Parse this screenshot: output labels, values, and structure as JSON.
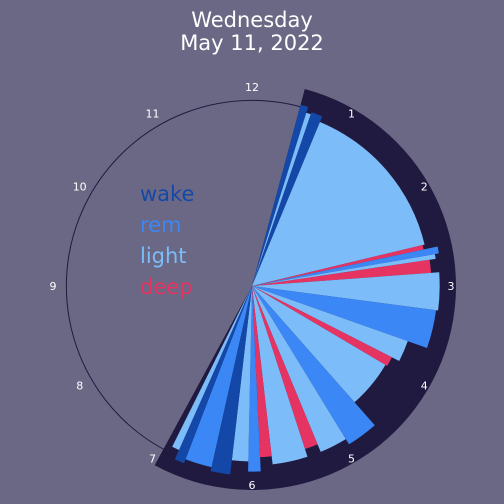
{
  "chart_data": {
    "type": "polar-bar",
    "title_line1": "Wednesday",
    "title_line2": "May 11, 2022",
    "hour_labels": [
      "12",
      "1",
      "2",
      "3",
      "4",
      "5",
      "6",
      "7",
      "8",
      "9",
      "10",
      "11"
    ],
    "legend": [
      {
        "label": "wake",
        "color": "#1448a8"
      },
      {
        "label": "rem",
        "color": "#3b87f5"
      },
      {
        "label": "light",
        "color": "#7cbcf9"
      },
      {
        "label": "deep",
        "color": "#e63462"
      }
    ],
    "colors": {
      "background": "#6b6885",
      "night_band": "#211a40",
      "clock_outline": "#211a40",
      "wake": "#1448a8",
      "rem": "#3b87f5",
      "light": "#7cbcf9",
      "deep": "#e63462"
    },
    "sleep_window": {
      "start_hour": 0.5,
      "end_hour": 6.95,
      "radius": 1.0
    },
    "clock_radius": 0.91,
    "segments": [
      {
        "start": 0.5,
        "end": 0.58,
        "stage": "wake",
        "radius": 0.92
      },
      {
        "start": 0.58,
        "end": 0.63,
        "stage": "light",
        "radius": 0.89
      },
      {
        "start": 0.63,
        "end": 0.75,
        "stage": "wake",
        "radius": 0.9
      },
      {
        "start": 0.75,
        "end": 2.55,
        "stage": "light",
        "radius": 0.87
      },
      {
        "start": 2.55,
        "end": 2.6,
        "stage": "deep",
        "radius": 0.86
      },
      {
        "start": 2.6,
        "end": 2.67,
        "stage": "rem",
        "radius": 0.93
      },
      {
        "start": 2.67,
        "end": 2.72,
        "stage": "light",
        "radius": 0.91
      },
      {
        "start": 2.72,
        "end": 2.86,
        "stage": "deep",
        "radius": 0.88
      },
      {
        "start": 2.86,
        "end": 3.25,
        "stage": "light",
        "radius": 0.92
      },
      {
        "start": 3.25,
        "end": 3.65,
        "stage": "rem",
        "radius": 0.91
      },
      {
        "start": 3.65,
        "end": 3.9,
        "stage": "light",
        "radius": 0.81
      },
      {
        "start": 3.9,
        "end": 4.02,
        "stage": "deep",
        "radius": 0.77
      },
      {
        "start": 4.02,
        "end": 4.62,
        "stage": "light",
        "radius": 0.76
      },
      {
        "start": 4.62,
        "end": 4.95,
        "stage": "rem",
        "radius": 0.91
      },
      {
        "start": 4.95,
        "end": 5.25,
        "stage": "light",
        "radius": 0.88
      },
      {
        "start": 5.25,
        "end": 5.4,
        "stage": "deep",
        "radius": 0.84
      },
      {
        "start": 5.4,
        "end": 5.78,
        "stage": "light",
        "radius": 0.88
      },
      {
        "start": 5.78,
        "end": 5.91,
        "stage": "deep",
        "radius": 0.84
      },
      {
        "start": 5.91,
        "end": 6.04,
        "stage": "rem",
        "radius": 0.91
      },
      {
        "start": 6.04,
        "end": 6.22,
        "stage": "light",
        "radius": 0.86
      },
      {
        "start": 6.22,
        "end": 6.42,
        "stage": "wake",
        "radius": 0.93
      },
      {
        "start": 6.42,
        "end": 6.7,
        "stage": "rem",
        "radius": 0.91
      },
      {
        "start": 6.7,
        "end": 6.8,
        "stage": "wake",
        "radius": 0.93
      },
      {
        "start": 6.8,
        "end": 6.88,
        "stage": "light",
        "radius": 0.88
      }
    ]
  }
}
